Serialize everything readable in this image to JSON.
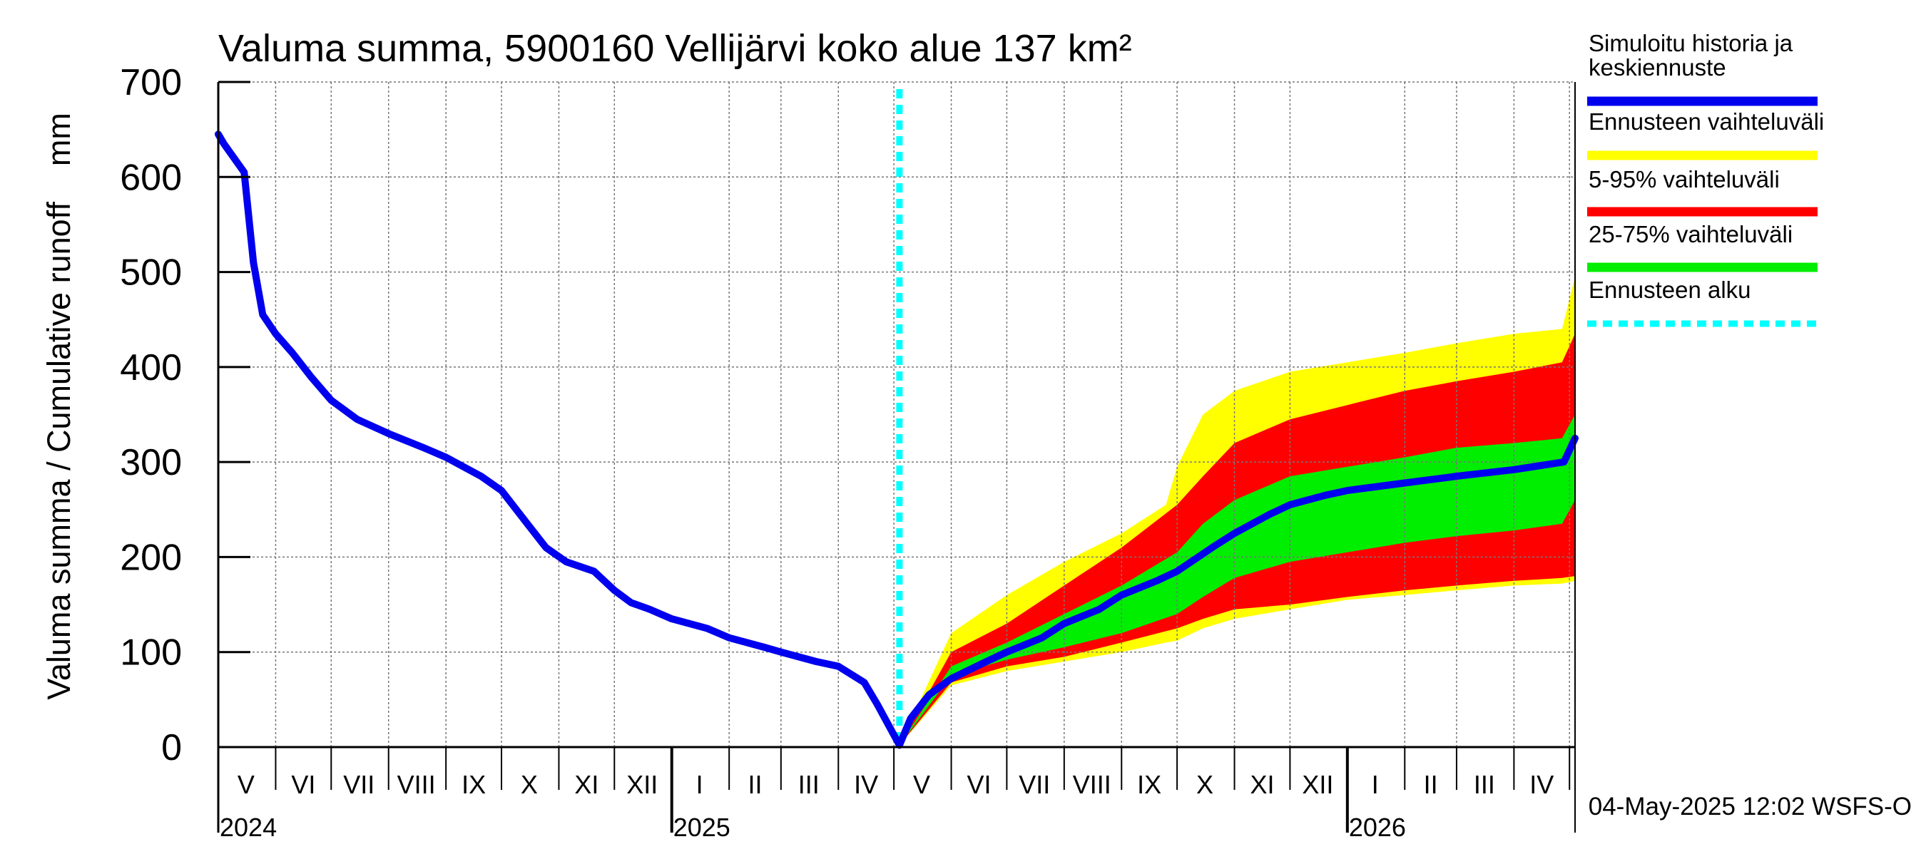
{
  "chart_data": {
    "type": "area",
    "title": "Valuma summa, 5900160 Vellijärvi koko alue 137 km²",
    "ylabel": "Valuma summa / Cumulative runoff    mm",
    "ylim": [
      0,
      700
    ],
    "yticks": [
      0,
      100,
      200,
      300,
      400,
      500,
      600,
      700
    ],
    "xlim": [
      "2024-05-01",
      "2026-05-04"
    ],
    "grid": true,
    "legend_position": "right",
    "legend": [
      {
        "label": "Simuloitu historia ja keskiennuste",
        "color": "#0000ee",
        "style": "solid"
      },
      {
        "label": "Ennusteen vaihteluväli",
        "color": "#ffff00",
        "style": "solid"
      },
      {
        "label": "5-95% vaihteluväli",
        "color": "#ff0000",
        "style": "solid"
      },
      {
        "label": "25-75% vaihteluväli",
        "color": "#00ee00",
        "style": "solid"
      },
      {
        "label": "Ennusteen alku",
        "color": "#00ffff",
        "style": "dashed"
      }
    ],
    "month_labels": [
      {
        "label": "V",
        "date": "2024-05-16"
      },
      {
        "label": "VI",
        "date": "2024-06-16"
      },
      {
        "label": "VII",
        "date": "2024-07-16"
      },
      {
        "label": "VIII",
        "date": "2024-08-16"
      },
      {
        "label": "IX",
        "date": "2024-09-16"
      },
      {
        "label": "X",
        "date": "2024-10-16"
      },
      {
        "label": "XI",
        "date": "2024-11-16"
      },
      {
        "label": "XII",
        "date": "2024-12-16"
      },
      {
        "label": "I",
        "date": "2025-01-16"
      },
      {
        "label": "II",
        "date": "2025-02-15"
      },
      {
        "label": "III",
        "date": "2025-03-16"
      },
      {
        "label": "IV",
        "date": "2025-04-16"
      },
      {
        "label": "V",
        "date": "2025-05-16"
      },
      {
        "label": "VI",
        "date": "2025-06-16"
      },
      {
        "label": "VII",
        "date": "2025-07-16"
      },
      {
        "label": "VIII",
        "date": "2025-08-16"
      },
      {
        "label": "IX",
        "date": "2025-09-16"
      },
      {
        "label": "X",
        "date": "2025-10-16"
      },
      {
        "label": "XI",
        "date": "2025-11-16"
      },
      {
        "label": "XII",
        "date": "2025-12-16"
      },
      {
        "label": "I",
        "date": "2026-01-16"
      },
      {
        "label": "II",
        "date": "2026-02-15"
      },
      {
        "label": "III",
        "date": "2026-03-16"
      },
      {
        "label": "IV",
        "date": "2026-04-16"
      }
    ],
    "month_boundaries": [
      "2024-06-01",
      "2024-07-01",
      "2024-08-01",
      "2024-09-01",
      "2024-10-01",
      "2024-11-01",
      "2024-12-01",
      "2025-02-01",
      "2025-03-01",
      "2025-04-01",
      "2025-05-01",
      "2025-06-01",
      "2025-07-01",
      "2025-08-01",
      "2025-09-01",
      "2025-10-01",
      "2025-11-01",
      "2025-12-01",
      "2026-02-01",
      "2026-03-01",
      "2026-04-01",
      "2026-05-01"
    ],
    "year_labels": [
      {
        "label": "2024",
        "date": "2024-05-01"
      },
      {
        "label": "2025",
        "date": "2025-01-01"
      },
      {
        "label": "2026",
        "date": "2026-01-01"
      }
    ],
    "forecast_start": "2025-05-04",
    "series": [
      {
        "name": "Simuloitu historia ja keskiennuste",
        "color": "#0000ee",
        "x": [
          "2024-05-01",
          "2024-05-04",
          "2024-05-15",
          "2024-05-20",
          "2024-05-25",
          "2024-06-01",
          "2024-06-10",
          "2024-06-20",
          "2024-07-01",
          "2024-07-15",
          "2024-08-01",
          "2024-08-20",
          "2024-09-01",
          "2024-09-20",
          "2024-10-01",
          "2024-10-15",
          "2024-10-25",
          "2024-11-05",
          "2024-11-20",
          "2024-12-01",
          "2024-12-10",
          "2024-12-20",
          "2025-01-01",
          "2025-01-20",
          "2025-02-01",
          "2025-02-20",
          "2025-03-01",
          "2025-03-20",
          "2025-04-01",
          "2025-04-15",
          "2025-04-22",
          "2025-05-04",
          "2025-05-10",
          "2025-05-20",
          "2025-06-01",
          "2025-06-20",
          "2025-07-01",
          "2025-07-20",
          "2025-08-01",
          "2025-08-20",
          "2025-09-01",
          "2025-09-20",
          "2025-10-01",
          "2025-10-20",
          "2025-11-01",
          "2025-11-20",
          "2025-12-01",
          "2025-12-20",
          "2026-01-01",
          "2026-02-01",
          "2026-03-01",
          "2026-04-01",
          "2026-04-28",
          "2026-05-04"
        ],
        "values": [
          645,
          635,
          605,
          510,
          455,
          435,
          415,
          390,
          365,
          345,
          330,
          315,
          305,
          285,
          270,
          235,
          210,
          195,
          185,
          165,
          152,
          145,
          135,
          125,
          115,
          105,
          100,
          90,
          85,
          68,
          45,
          2,
          30,
          55,
          72,
          90,
          100,
          115,
          130,
          145,
          160,
          175,
          185,
          210,
          225,
          245,
          255,
          265,
          270,
          278,
          285,
          292,
          300,
          325
        ]
      }
    ],
    "bands": [
      {
        "name": "Ennusteen vaihteluväli",
        "color": "#ffff00",
        "x": [
          "2025-05-04",
          "2025-06-01",
          "2025-07-01",
          "2025-08-01",
          "2025-09-01",
          "2025-09-25",
          "2025-10-01",
          "2025-10-15",
          "2025-11-01",
          "2025-12-01",
          "2026-01-01",
          "2026-02-01",
          "2026-03-01",
          "2026-04-01",
          "2026-04-27",
          "2026-05-04"
        ],
        "upper": [
          2,
          120,
          160,
          195,
          225,
          255,
          295,
          350,
          375,
          395,
          405,
          415,
          425,
          435,
          440,
          495
        ],
        "lower": [
          2,
          65,
          80,
          90,
          100,
          110,
          112,
          125,
          135,
          145,
          155,
          160,
          165,
          170,
          172,
          175
        ]
      },
      {
        "name": "5-95% vaihteluväli",
        "color": "#ff0000",
        "x": [
          "2025-05-04",
          "2025-06-01",
          "2025-07-01",
          "2025-08-01",
          "2025-09-01",
          "2025-10-01",
          "2025-10-15",
          "2025-11-01",
          "2025-12-01",
          "2026-01-01",
          "2026-02-01",
          "2026-03-01",
          "2026-04-01",
          "2026-04-27",
          "2026-05-04"
        ],
        "upper": [
          2,
          100,
          130,
          170,
          210,
          255,
          285,
          320,
          345,
          360,
          375,
          385,
          395,
          405,
          435
        ],
        "lower": [
          2,
          68,
          85,
          95,
          110,
          125,
          135,
          145,
          150,
          158,
          165,
          170,
          175,
          178,
          180
        ]
      },
      {
        "name": "25-75% vaihteluväli",
        "color": "#00ee00",
        "x": [
          "2025-05-04",
          "2025-06-01",
          "2025-07-01",
          "2025-08-01",
          "2025-09-01",
          "2025-10-01",
          "2025-10-15",
          "2025-11-01",
          "2025-12-01",
          "2026-01-01",
          "2026-02-01",
          "2026-03-01",
          "2026-04-01",
          "2026-04-27",
          "2026-05-04"
        ],
        "upper": [
          2,
          85,
          110,
          140,
          170,
          205,
          235,
          260,
          285,
          295,
          305,
          315,
          320,
          325,
          350
        ],
        "lower": [
          2,
          75,
          92,
          105,
          120,
          140,
          158,
          178,
          195,
          205,
          215,
          222,
          228,
          235,
          260
        ]
      }
    ]
  },
  "timestamp": "04-May-2025 12:02 WSFS-O"
}
